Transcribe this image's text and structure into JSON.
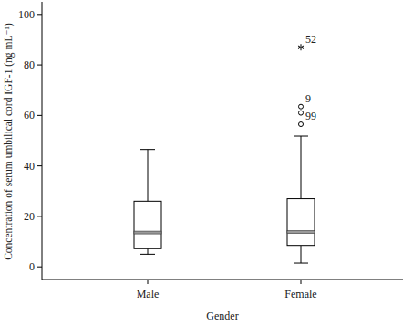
{
  "chart_data": {
    "type": "box",
    "y_label": "Concentration of serum umbilical cord IGF-1 (ng mL⁻¹)",
    "x_label": "Gender",
    "categories": [
      "Male",
      "Female"
    ],
    "boxes": [
      {
        "whisker_low": 5,
        "q1": 7.2,
        "median": 13.6,
        "q3": 26,
        "whisker_high": 46.5,
        "outliers": []
      },
      {
        "whisker_low": 1.5,
        "q1": 8.5,
        "median": 13.8,
        "q3": 27,
        "whisker_high": 51.8,
        "outliers": [
          {
            "value": 87,
            "label": "52",
            "marker": "star"
          },
          {
            "value": 63.5,
            "label": "9",
            "marker": "circle"
          },
          {
            "value": 61,
            "marker": "circle"
          },
          {
            "value": 56.5,
            "label": "99",
            "marker": "circle"
          }
        ]
      }
    ],
    "ylim": [
      -5,
      105
    ],
    "yticks": [
      0,
      20,
      40,
      60,
      80,
      100
    ],
    "grid": false
  }
}
